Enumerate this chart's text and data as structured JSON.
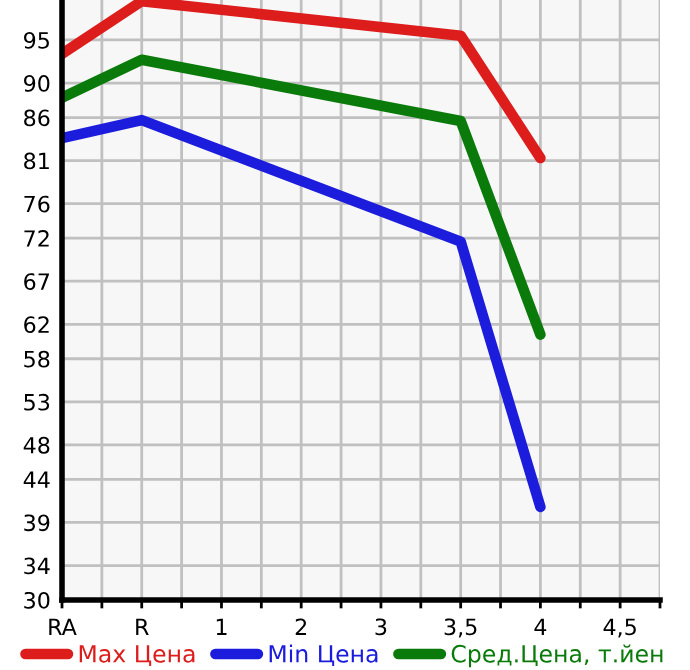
{
  "chart_data": {
    "type": "line",
    "categories": [
      "RA",
      "R",
      "1",
      "2",
      "3",
      "3,5",
      "4",
      "4,5"
    ],
    "series": [
      {
        "name": "Max Цена",
        "color": "#dd1c1c",
        "values": [
          93.4,
          99.5,
          null,
          null,
          null,
          95.5,
          81.3,
          null
        ]
      },
      {
        "name": "Min Цена",
        "color": "#1c1cdd",
        "values": [
          83.6,
          85.7,
          null,
          null,
          null,
          71.6,
          40.8,
          null
        ]
      },
      {
        "name": "Сред.Цена, т.йен",
        "color": "#0a7a0a",
        "values": [
          88.3,
          92.7,
          null,
          null,
          null,
          85.6,
          60.8,
          null
        ]
      }
    ],
    "ylim": [
      30,
      99.64
    ],
    "yticks": [
      30,
      34,
      39,
      44,
      48,
      53,
      58,
      62,
      67,
      72,
      76,
      81,
      86,
      90,
      95
    ],
    "grid": true,
    "legend": "bottom",
    "marker": "none",
    "line_style": "solid"
  }
}
